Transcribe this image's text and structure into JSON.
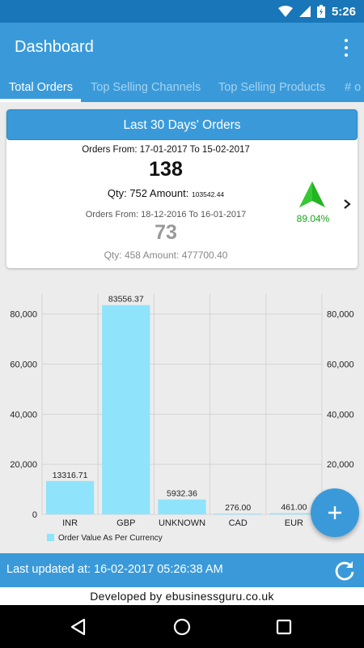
{
  "status_bar": {
    "time": "5:26",
    "icons": [
      "wifi-icon",
      "signal-icon",
      "battery-charging-icon"
    ]
  },
  "app_bar": {
    "title": "Dashboard",
    "menu_icon": "overflow-menu-icon"
  },
  "tabs": [
    {
      "label": "Total Orders",
      "active": true
    },
    {
      "label": "Top Selling Channels",
      "active": false
    },
    {
      "label": "Top Selling Products",
      "active": false
    },
    {
      "label": "# o",
      "active": false
    }
  ],
  "orders_card": {
    "header": "Last 30 Days' Orders",
    "current": {
      "range": "Orders From: 17-01-2017 To 15-02-2017",
      "count": "138",
      "qty_label": "Qty:",
      "qty": "752",
      "amount_label": "Amount:",
      "amount": "103542.44"
    },
    "previous": {
      "range": "Orders From: 18-12-2016 To 16-01-2017",
      "count": "73",
      "qty_label": "Qty:",
      "qty": "458",
      "amount_label": "Amount:",
      "amount": "477700.40"
    },
    "growth": "89.04%",
    "trend_color": "#22b522"
  },
  "chart_data": {
    "type": "bar",
    "categories": [
      "INR",
      "GBP",
      "UNKNOWN",
      "CAD",
      "EUR"
    ],
    "series": [
      {
        "name": "Order Value As Per Currency",
        "values": [
          13316.71,
          83556.37,
          5932.36,
          276.0,
          461.0
        ]
      }
    ],
    "value_labels": [
      "13316.71",
      "83556.37",
      "5932.36",
      "276.00",
      "461.00"
    ],
    "y_ticks": [
      "0",
      "20,000",
      "40,000",
      "60,000",
      "80,000"
    ],
    "ylim": [
      0,
      88000
    ],
    "grid": true,
    "legend_position": "bottom-left",
    "bar_color": "#8fe3fb"
  },
  "updated_bar": {
    "text": "Last updated at: 16-02-2017 05:26:38 AM",
    "refresh_icon": "refresh-icon"
  },
  "footer": {
    "text": "Developed by ebusinessguru.co.uk"
  },
  "fab": {
    "icon": "plus-icon"
  },
  "nav_bar": {
    "buttons": [
      "back-icon",
      "home-icon",
      "recents-icon"
    ]
  },
  "colors": {
    "primary": "#3a9ad9",
    "status_bar": "#1976b8",
    "accent_green": "#19a51d"
  }
}
